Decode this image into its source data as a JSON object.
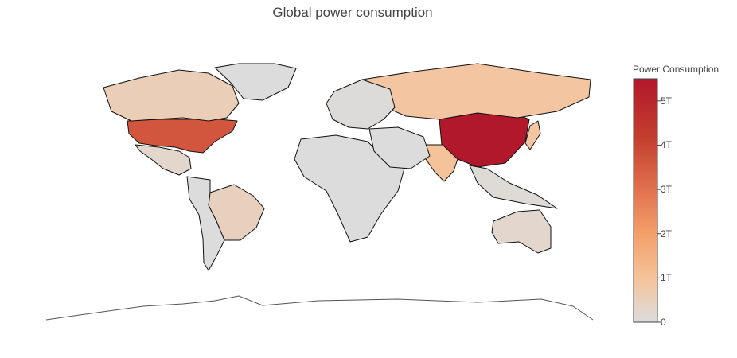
{
  "chart_data": {
    "type": "choropleth",
    "title": "Global power consumption",
    "colorbar": {
      "title": "Power Consumption",
      "ticks": [
        "0",
        "1T",
        "2T",
        "3T",
        "4T",
        "5T"
      ],
      "tick_values": [
        0,
        1,
        2,
        3,
        4,
        5
      ],
      "range": [
        0,
        5.5
      ],
      "colorscale": [
        "#dcdcdc",
        "#f5c39a",
        "#f4a06a",
        "#e0704e",
        "#c5402f",
        "#b2182b"
      ]
    },
    "regions": [
      {
        "name": "China",
        "value": 5.5
      },
      {
        "name": "United States",
        "value": 3.9
      },
      {
        "name": "Russia",
        "value": 1.0
      },
      {
        "name": "India",
        "value": 1.1
      },
      {
        "name": "Japan",
        "value": 1.0
      },
      {
        "name": "Canada",
        "value": 0.6
      },
      {
        "name": "Brazil",
        "value": 0.5
      },
      {
        "name": "Australia",
        "value": 0.25
      },
      {
        "name": "Mexico",
        "value": 0.25
      },
      {
        "name": "Greenland",
        "value": 0
      },
      {
        "name": "Africa",
        "value": 0
      },
      {
        "name": "Middle East",
        "value": 0
      },
      {
        "name": "Europe",
        "value": 0.05
      },
      {
        "name": "South America (other)",
        "value": 0
      },
      {
        "name": "Southeast Asia",
        "value": 0.1
      },
      {
        "name": "Antarctica",
        "value": null
      }
    ],
    "legend": "right"
  }
}
